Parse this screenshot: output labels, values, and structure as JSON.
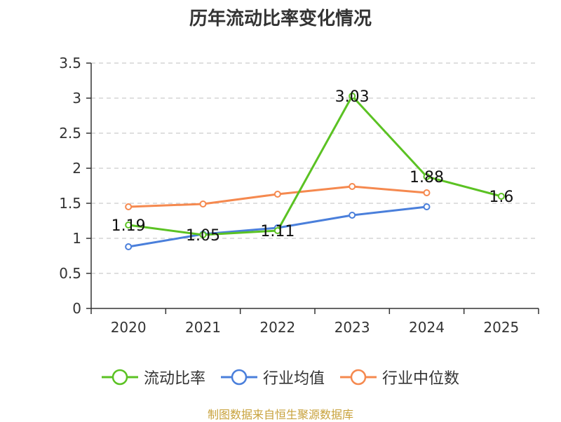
{
  "chart_data": {
    "type": "line",
    "title": "历年流动比率变化情况",
    "categories": [
      "2020",
      "2021",
      "2022",
      "2023",
      "2024",
      "2025"
    ],
    "ylim": [
      0,
      3.5
    ],
    "yticks": [
      "0",
      "0.5",
      "1",
      "1.5",
      "2",
      "2.5",
      "3",
      "3.5"
    ],
    "grid": true,
    "legend_position": "bottom",
    "series": [
      {
        "name": "流动比率",
        "color": "#5bc223",
        "values": [
          1.19,
          1.05,
          1.11,
          3.03,
          1.88,
          1.6
        ],
        "labels": [
          "1.19",
          "1.05",
          "1.11",
          "3.03",
          "1.88",
          "1.6"
        ]
      },
      {
        "name": "行业均值",
        "color": "#4a7fdb",
        "values": [
          0.88,
          1.06,
          1.15,
          1.33,
          1.45,
          null
        ]
      },
      {
        "name": "行业中位数",
        "color": "#f5894f",
        "values": [
          1.45,
          1.49,
          1.63,
          1.74,
          1.65,
          null
        ]
      }
    ]
  },
  "source": "制图数据来自恒生聚源数据库"
}
